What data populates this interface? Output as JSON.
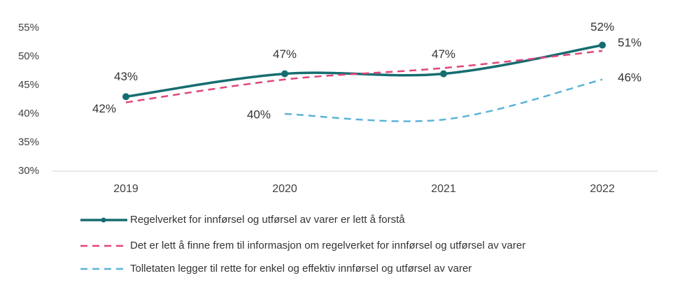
{
  "chart_data": {
    "type": "line",
    "categories": [
      "2019",
      "2020",
      "2021",
      "2022"
    ],
    "series": [
      {
        "name": "Regelverket for innførsel og utførsel av varer er lett å forstå",
        "color": "#166d70",
        "dash": "solid",
        "markers": true,
        "values": [
          43,
          47,
          47,
          52
        ],
        "value_labels": [
          "43%",
          "47%",
          "47%",
          "52%"
        ]
      },
      {
        "name": "Det er lett å finne frem til informasjon om regelverket for innførsel og utførsel av varer",
        "color": "#e0457b",
        "dash": "dashed",
        "markers": false,
        "values": [
          42,
          46,
          48,
          51
        ],
        "value_labels": [
          "42%",
          null,
          null,
          "51%"
        ]
      },
      {
        "name": "Tolletaten legger til rette for enkel og effektiv innførsel og utførsel av varer",
        "color": "#5bb3d6",
        "dash": "dashed",
        "markers": false,
        "values": [
          null,
          40,
          39,
          46
        ],
        "value_labels": [
          null,
          "40%",
          null,
          "46%"
        ]
      }
    ],
    "ylim": [
      30,
      55
    ],
    "yticks": [
      {
        "value": 30,
        "label": "30%"
      },
      {
        "value": 35,
        "label": "35%"
      },
      {
        "value": 40,
        "label": "40%"
      },
      {
        "value": 45,
        "label": "45%"
      },
      {
        "value": 50,
        "label": "50%"
      },
      {
        "value": 55,
        "label": "55%"
      }
    ],
    "grid": false,
    "legend": "bottom"
  }
}
